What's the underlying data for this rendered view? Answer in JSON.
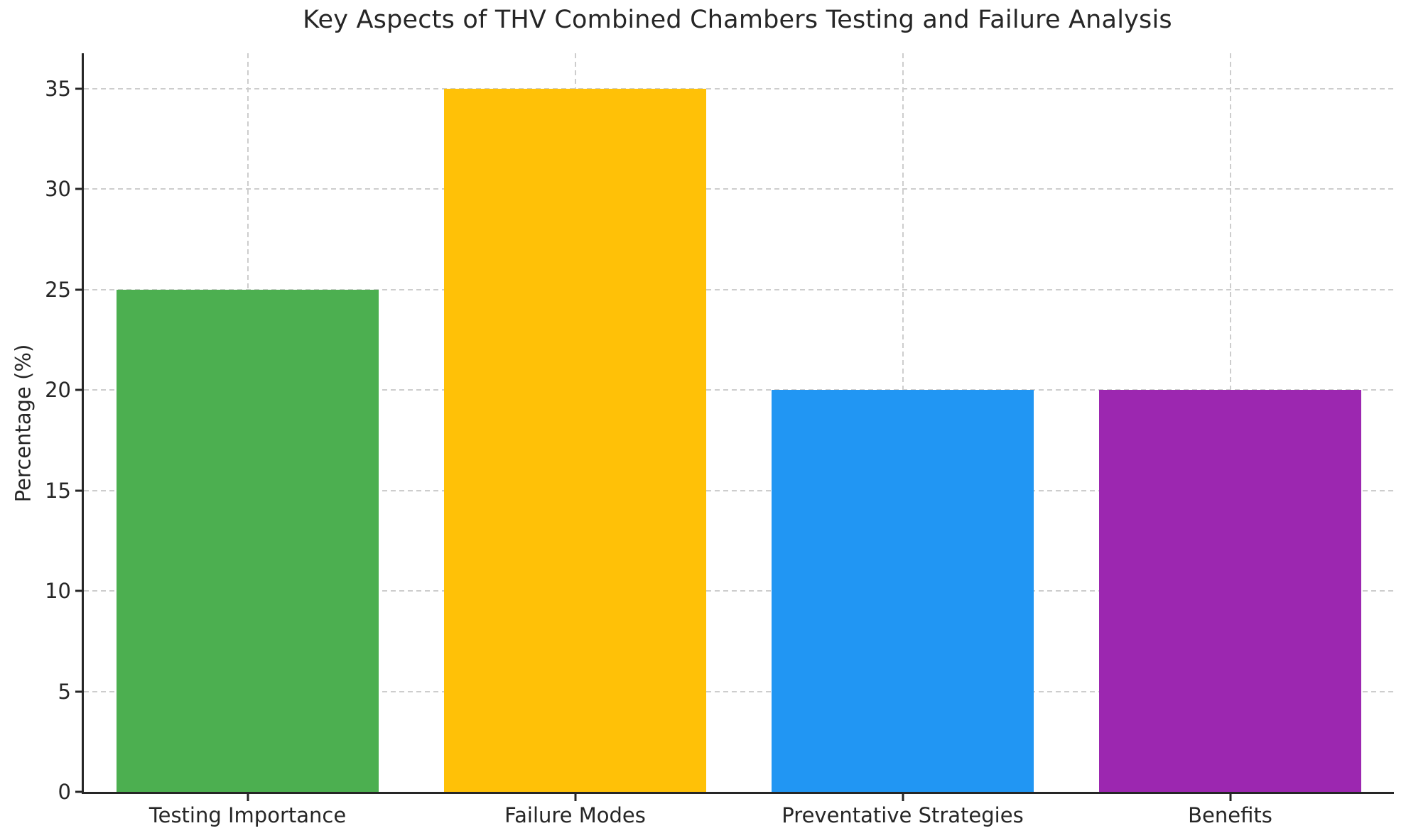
{
  "chart_data": {
    "type": "bar",
    "title": "Key Aspects of THV Combined Chambers Testing and Failure Analysis",
    "categories": [
      "Testing Importance",
      "Failure Modes",
      "Preventative Strategies",
      "Benefits"
    ],
    "values": [
      25,
      35,
      20,
      20
    ],
    "bar_colors": [
      "#4caf50",
      "#ffc107",
      "#2196f3",
      "#9c27b0"
    ],
    "xlabel": "",
    "ylabel": "Percentage (%)",
    "ylim": [
      0,
      36.75
    ],
    "yticks": [
      0,
      5,
      10,
      15,
      20,
      25,
      30,
      35
    ],
    "grid": true,
    "grid_style": "dashed",
    "legend": "none",
    "bar_width_fraction": 0.8
  },
  "colors": {
    "background": "#ffffff",
    "text": "#262626",
    "grid": "#cdcdcd",
    "spine": "#262626"
  }
}
